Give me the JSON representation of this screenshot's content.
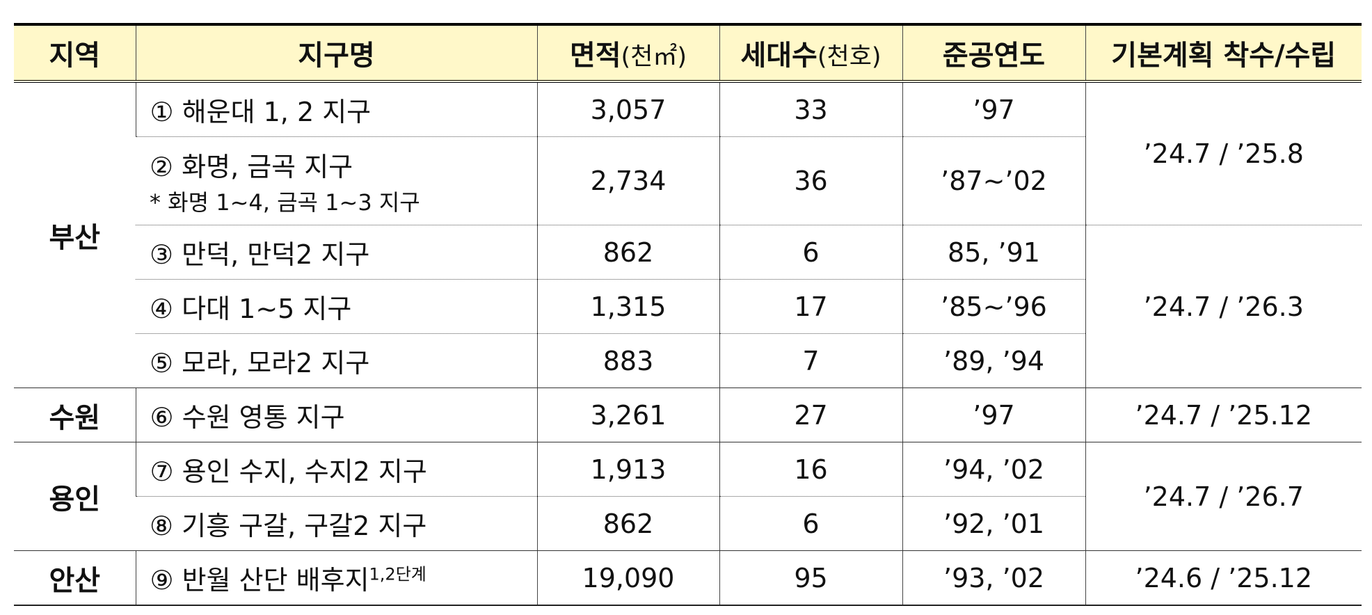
{
  "headers": {
    "region": "지역",
    "district": "지구명",
    "area": "면적",
    "area_unit": "(천㎡)",
    "households": "세대수",
    "households_unit": "(천호)",
    "completion_year": "준공연도",
    "plan": "기본계획 착수/수립"
  },
  "regions": {
    "busan": "부산",
    "suwon": "수원",
    "yongin": "용인",
    "ansan": "안산"
  },
  "rows": [
    {
      "name": "① 해운대 1, 2 지구",
      "sub": "",
      "area": "3,057",
      "households": "33",
      "year": "’97"
    },
    {
      "name": "② 화명, 금곡 지구",
      "sub": "* 화명 1~4, 금곡 1~3 지구",
      "area": "2,734",
      "households": "36",
      "year": "’87~’02"
    },
    {
      "name": "③ 만덕, 만덕2 지구",
      "sub": "",
      "area": "862",
      "households": "6",
      "year": "85, ’91"
    },
    {
      "name": "④ 다대 1~5 지구",
      "sub": "",
      "area": "1,315",
      "households": "17",
      "year": "’85~’96"
    },
    {
      "name": "⑤ 모라, 모라2 지구",
      "sub": "",
      "area": "883",
      "households": "7",
      "year": "’89, ’94"
    },
    {
      "name": "⑥ 수원 영통 지구",
      "sub": "",
      "area": "3,261",
      "households": "27",
      "year": "’97"
    },
    {
      "name": "⑦ 용인 수지, 수지2 지구",
      "sub": "",
      "area": "1,913",
      "households": "16",
      "year": "’94, ’02"
    },
    {
      "name": "⑧ 기흥 구갈, 구갈2 지구",
      "sub": "",
      "area": "862",
      "households": "6",
      "year": "’92, ’01"
    },
    {
      "name": "⑨ 반월 산단 배후지",
      "sup": "1,2단계",
      "area": "19,090",
      "households": "95",
      "year": "’93, ’02"
    }
  ],
  "plans": [
    "’24.7 / ’25.8",
    "’24.7 / ’26.3",
    "’24.7 / ’25.12",
    "’24.7 / ’26.7",
    "’24.6 / ’25.12"
  ]
}
